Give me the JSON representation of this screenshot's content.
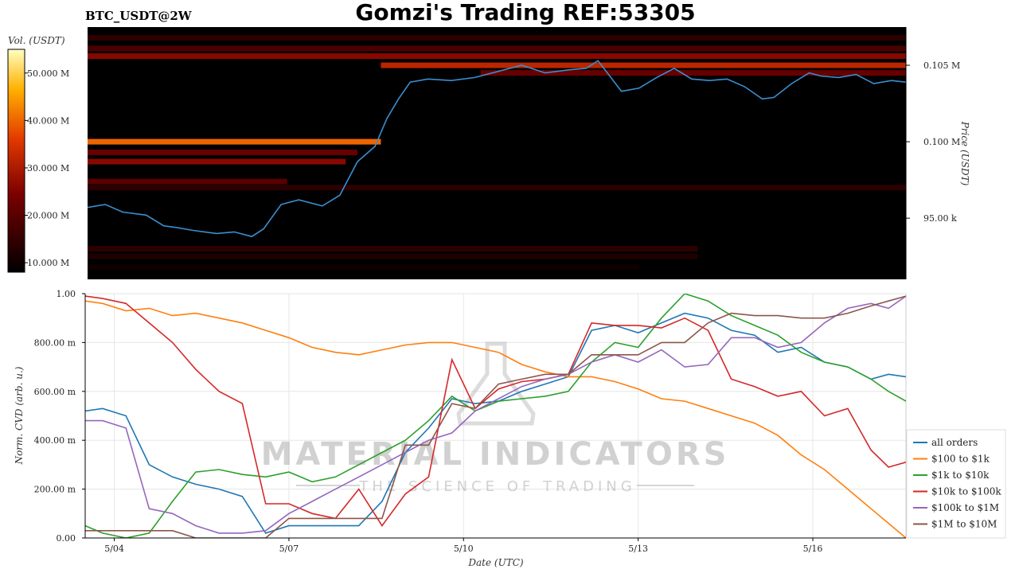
{
  "title": "Gomzi's Trading REF:53305",
  "symbol": "BTC_USDT@2W",
  "watermark": {
    "main": "MATERIAL INDICATORS",
    "sub": "THE SCIENCE OF TRADING"
  },
  "colors": {
    "all": "#1f77b4",
    "o100": "#ff7f0e",
    "o1k": "#2ca02c",
    "o10k": "#d62728",
    "o100k": "#9467bd",
    "o1m": "#8c564b",
    "price": "#3a8fd0"
  },
  "chart_data": [
    {
      "type": "heatmap",
      "colorbar_label": "Vol. (USDT)",
      "colorbar_ticks": [
        "50.000 M",
        "40.000 M",
        "30.000 M",
        "20.000 M",
        "10.000 M"
      ],
      "colorbar_range": [
        8,
        55
      ],
      "ylabel": "Price (USDT)",
      "y_ticks": [
        {
          "label": "0.105 M",
          "value": 105000
        },
        {
          "label": "0.100 M",
          "value": 100000
        },
        {
          "label": "95.00 k",
          "value": 95000
        }
      ],
      "ylim": [
        91000,
        107500
      ],
      "x_days": [
        3.6,
        17.55
      ],
      "bands": [
        {
          "p": 106800,
          "v": 14,
          "from": 3.6,
          "to": 17.55
        },
        {
          "p": 106100,
          "v": 18,
          "from": 3.6,
          "to": 17.55
        },
        {
          "p": 105600,
          "v": 26,
          "from": 3.6,
          "to": 17.55
        },
        {
          "p": 105000,
          "v": 32,
          "from": 8.6,
          "to": 17.55
        },
        {
          "p": 104500,
          "v": 22,
          "from": 10.3,
          "to": 17.55
        },
        {
          "p": 100000,
          "v": 40,
          "from": 3.6,
          "to": 8.6
        },
        {
          "p": 99300,
          "v": 22,
          "from": 3.6,
          "to": 8.2
        },
        {
          "p": 98700,
          "v": 26,
          "from": 3.6,
          "to": 8.0
        },
        {
          "p": 97400,
          "v": 20,
          "from": 3.6,
          "to": 7.0
        },
        {
          "p": 97000,
          "v": 14,
          "from": 3.6,
          "to": 17.55
        },
        {
          "p": 93000,
          "v": 14,
          "from": 3.6,
          "to": 14.0
        },
        {
          "p": 92500,
          "v": 12,
          "from": 3.6,
          "to": 14.0
        },
        {
          "p": 91800,
          "v": 10,
          "from": 3.6,
          "to": 13.0
        }
      ],
      "price_series": {
        "name": "price",
        "x": [
          3.6,
          3.9,
          4.2,
          4.6,
          4.9,
          5.1,
          5.4,
          5.8,
          6.1,
          6.4,
          6.6,
          6.9,
          7.2,
          7.6,
          7.9,
          8.2,
          8.5,
          8.7,
          8.9,
          9.1,
          9.4,
          9.8,
          10.2,
          10.6,
          11.0,
          11.4,
          11.8,
          12.1,
          12.3,
          12.5,
          12.7,
          13.0,
          13.3,
          13.6,
          13.9,
          14.2,
          14.5,
          14.8,
          15.1,
          15.3,
          15.6,
          15.9,
          16.1,
          16.4,
          16.7,
          17.0,
          17.3,
          17.55
        ],
        "y": [
          95700,
          95900,
          95400,
          95200,
          94500,
          94400,
          94200,
          94000,
          94100,
          93800,
          94300,
          95900,
          96200,
          95800,
          96500,
          98700,
          99700,
          101500,
          102800,
          103900,
          104100,
          104000,
          104200,
          104600,
          105000,
          104500,
          104700,
          104800,
          105300,
          104300,
          103300,
          103500,
          104200,
          104800,
          104100,
          104000,
          104100,
          103600,
          102800,
          102900,
          103800,
          104500,
          104300,
          104200,
          104400,
          103800,
          104000,
          103900
        ]
      }
    },
    {
      "type": "line",
      "xlabel": "Date (UTC)",
      "ylabel": "Norm. CVD (arb. u.)",
      "x_ticks": [
        {
          "label": "5/04",
          "value": 4
        },
        {
          "label": "5/07",
          "value": 7
        },
        {
          "label": "5/10",
          "value": 10
        },
        {
          "label": "5/13",
          "value": 13
        },
        {
          "label": "5/16",
          "value": 16
        }
      ],
      "y_ticks": [
        {
          "label": "1.00",
          "value": 1.0
        },
        {
          "label": "800.00 m",
          "value": 0.8
        },
        {
          "label": "600.00 m",
          "value": 0.6
        },
        {
          "label": "400.00 m",
          "value": 0.4
        },
        {
          "label": "200.00 m",
          "value": 0.2
        },
        {
          "label": "0.00",
          "value": 0.0
        }
      ],
      "xlim": [
        3.5,
        17.6
      ],
      "ylim": [
        0,
        1
      ],
      "grid": true,
      "legend_position": "right",
      "x": [
        3.5,
        3.8,
        4.2,
        4.6,
        5.0,
        5.4,
        5.8,
        6.2,
        6.6,
        7.0,
        7.4,
        7.8,
        8.2,
        8.6,
        9.0,
        9.4,
        9.8,
        10.2,
        10.6,
        11.0,
        11.4,
        11.8,
        12.2,
        12.6,
        13.0,
        13.4,
        13.8,
        14.2,
        14.6,
        15.0,
        15.4,
        15.8,
        16.2,
        16.6,
        17.0,
        17.3,
        17.6
      ],
      "series": [
        {
          "name": "all orders",
          "key": "all",
          "values": [
            0.52,
            0.53,
            0.5,
            0.3,
            0.25,
            0.22,
            0.2,
            0.17,
            0.02,
            0.05,
            0.05,
            0.05,
            0.05,
            0.15,
            0.35,
            0.45,
            0.57,
            0.55,
            0.56,
            0.6,
            0.63,
            0.66,
            0.85,
            0.87,
            0.84,
            0.88,
            0.92,
            0.9,
            0.85,
            0.83,
            0.76,
            0.78,
            0.72,
            0.7,
            0.65,
            0.67,
            0.66
          ]
        },
        {
          "name": "$100 to $1k",
          "key": "o100",
          "values": [
            0.97,
            0.96,
            0.93,
            0.94,
            0.91,
            0.92,
            0.9,
            0.88,
            0.85,
            0.82,
            0.78,
            0.76,
            0.75,
            0.77,
            0.79,
            0.8,
            0.8,
            0.78,
            0.76,
            0.71,
            0.68,
            0.66,
            0.66,
            0.64,
            0.61,
            0.57,
            0.56,
            0.53,
            0.5,
            0.47,
            0.42,
            0.34,
            0.28,
            0.2,
            0.12,
            0.06,
            0.0
          ]
        },
        {
          "name": "$1k to $10k",
          "key": "o1k",
          "values": [
            0.05,
            0.02,
            0.0,
            0.02,
            0.15,
            0.27,
            0.28,
            0.26,
            0.25,
            0.27,
            0.23,
            0.25,
            0.3,
            0.35,
            0.4,
            0.48,
            0.58,
            0.52,
            0.56,
            0.57,
            0.58,
            0.6,
            0.72,
            0.8,
            0.78,
            0.9,
            1.0,
            0.97,
            0.91,
            0.87,
            0.83,
            0.76,
            0.72,
            0.7,
            0.65,
            0.6,
            0.56
          ]
        },
        {
          "name": "$10k to $100k",
          "key": "o10k",
          "values": [
            0.99,
            0.98,
            0.96,
            0.88,
            0.8,
            0.69,
            0.6,
            0.55,
            0.14,
            0.14,
            0.1,
            0.08,
            0.2,
            0.05,
            0.18,
            0.25,
            0.73,
            0.53,
            0.61,
            0.64,
            0.65,
            0.67,
            0.88,
            0.87,
            0.87,
            0.86,
            0.9,
            0.85,
            0.65,
            0.62,
            0.58,
            0.6,
            0.5,
            0.53,
            0.36,
            0.29,
            0.31
          ]
        },
        {
          "name": "$100k to $1M",
          "key": "o100k",
          "values": [
            0.48,
            0.48,
            0.45,
            0.12,
            0.1,
            0.05,
            0.02,
            0.02,
            0.03,
            0.1,
            0.15,
            0.2,
            0.25,
            0.3,
            0.35,
            0.4,
            0.43,
            0.52,
            0.57,
            0.62,
            0.65,
            0.67,
            0.72,
            0.75,
            0.72,
            0.77,
            0.7,
            0.71,
            0.82,
            0.82,
            0.78,
            0.8,
            0.88,
            0.94,
            0.96,
            0.94,
            0.99
          ]
        },
        {
          "name": "$1M to $10M",
          "key": "o1m",
          "values": [
            0.03,
            0.03,
            0.03,
            0.03,
            0.03,
            0.0,
            0.0,
            0.0,
            0.0,
            0.08,
            0.08,
            0.08,
            0.08,
            0.08,
            0.38,
            0.38,
            0.55,
            0.53,
            0.63,
            0.65,
            0.67,
            0.67,
            0.75,
            0.75,
            0.75,
            0.8,
            0.8,
            0.88,
            0.92,
            0.91,
            0.91,
            0.9,
            0.9,
            0.92,
            0.95,
            0.97,
            0.99
          ]
        }
      ]
    }
  ]
}
